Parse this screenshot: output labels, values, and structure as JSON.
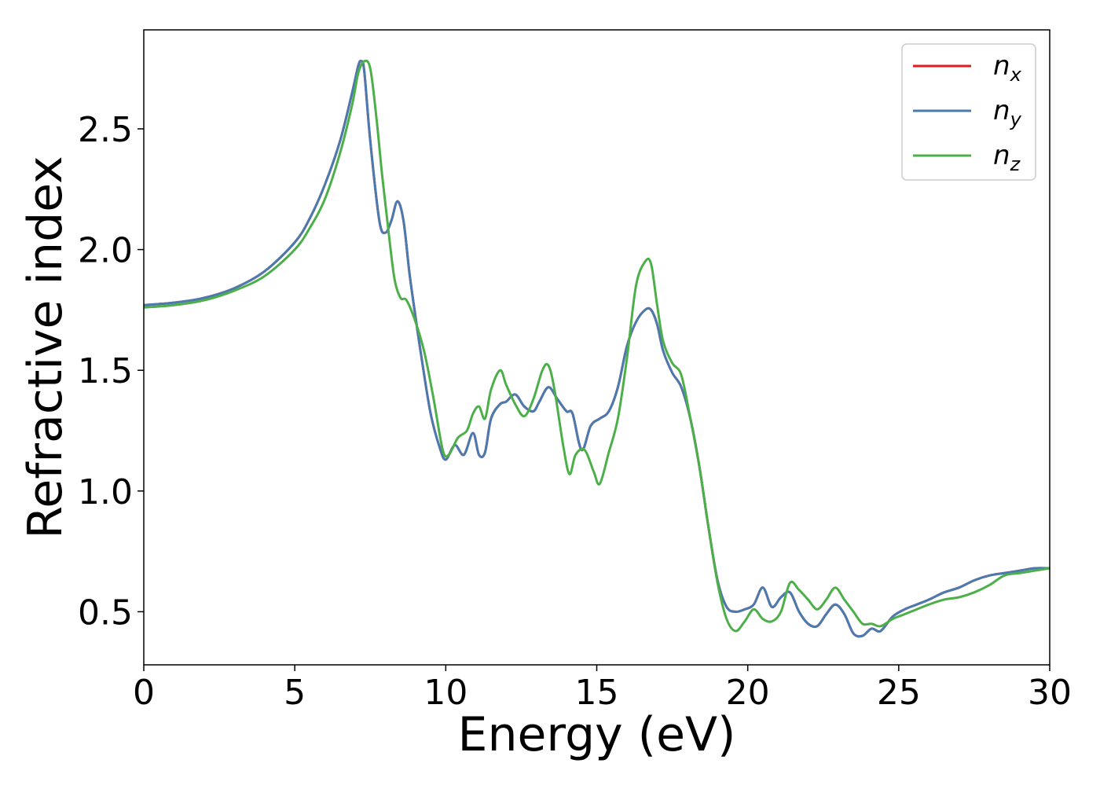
{
  "chart_data": {
    "type": "line",
    "title": "",
    "xlabel": "Energy (eV)",
    "ylabel": "Refractive index",
    "xlim": [
      0,
      30
    ],
    "ylim": [
      0.28,
      2.91
    ],
    "xticks": [
      0,
      5,
      10,
      15,
      20,
      25,
      30
    ],
    "xtick_labels": [
      "0",
      "5",
      "10",
      "15",
      "20",
      "25",
      "30"
    ],
    "yticks": [
      0.5,
      1.0,
      1.5,
      2.0,
      2.5
    ],
    "ytick_labels": [
      "0.5",
      "1.0",
      "1.5",
      "2.0",
      "2.5"
    ],
    "grid": false,
    "legend_position": "top-right",
    "series": [
      {
        "name": "n_x",
        "legend_base": "n",
        "legend_sub": "x",
        "color": "#e41a1c",
        "x": [
          0,
          1,
          2,
          3,
          4,
          5,
          5.5,
          6,
          6.5,
          6.9,
          7.1,
          7.2,
          7.3,
          7.5,
          7.8,
          8.0,
          8.2,
          8.4,
          8.6,
          8.8,
          9.0,
          9.2,
          9.5,
          9.8,
          10.0,
          10.3,
          10.6,
          10.9,
          11.1,
          11.3,
          11.5,
          11.8,
          12.0,
          12.3,
          12.6,
          12.9,
          13.1,
          13.4,
          13.7,
          14.0,
          14.2,
          14.5,
          14.8,
          15.1,
          15.4,
          15.7,
          16.0,
          16.3,
          16.6,
          16.8,
          17.0,
          17.2,
          17.5,
          17.8,
          18.1,
          18.4,
          18.7,
          19.0,
          19.3,
          19.6,
          19.9,
          20.2,
          20.5,
          20.8,
          21.1,
          21.4,
          21.7,
          22.0,
          22.3,
          22.6,
          22.9,
          23.2,
          23.5,
          23.8,
          24.1,
          24.4,
          24.8,
          25.2,
          25.6,
          26.0,
          26.5,
          27.0,
          27.5,
          28.0,
          28.5,
          29.0,
          29.5,
          30.0
        ],
        "y": [
          1.77,
          1.78,
          1.8,
          1.84,
          1.91,
          2.03,
          2.13,
          2.27,
          2.45,
          2.65,
          2.76,
          2.78,
          2.74,
          2.45,
          2.12,
          2.07,
          2.12,
          2.2,
          2.12,
          1.9,
          1.72,
          1.55,
          1.32,
          1.18,
          1.13,
          1.19,
          1.15,
          1.24,
          1.15,
          1.16,
          1.3,
          1.36,
          1.37,
          1.4,
          1.35,
          1.33,
          1.37,
          1.43,
          1.38,
          1.33,
          1.32,
          1.17,
          1.27,
          1.3,
          1.33,
          1.43,
          1.6,
          1.7,
          1.75,
          1.75,
          1.69,
          1.58,
          1.49,
          1.43,
          1.3,
          1.1,
          0.85,
          0.63,
          0.52,
          0.5,
          0.51,
          0.53,
          0.6,
          0.52,
          0.56,
          0.58,
          0.5,
          0.45,
          0.44,
          0.49,
          0.53,
          0.49,
          0.41,
          0.4,
          0.43,
          0.42,
          0.48,
          0.51,
          0.53,
          0.55,
          0.58,
          0.6,
          0.63,
          0.65,
          0.66,
          0.67,
          0.68,
          0.68
        ]
      },
      {
        "name": "n_y",
        "legend_base": "n",
        "legend_sub": "y",
        "color": "#4a7bb0",
        "x": [
          0,
          1,
          2,
          3,
          4,
          5,
          5.5,
          6,
          6.5,
          6.9,
          7.1,
          7.2,
          7.3,
          7.5,
          7.8,
          8.0,
          8.2,
          8.4,
          8.6,
          8.8,
          9.0,
          9.2,
          9.5,
          9.8,
          10.0,
          10.3,
          10.6,
          10.9,
          11.1,
          11.3,
          11.5,
          11.8,
          12.0,
          12.3,
          12.6,
          12.9,
          13.1,
          13.4,
          13.7,
          14.0,
          14.2,
          14.5,
          14.8,
          15.1,
          15.4,
          15.7,
          16.0,
          16.3,
          16.6,
          16.8,
          17.0,
          17.2,
          17.5,
          17.8,
          18.1,
          18.4,
          18.7,
          19.0,
          19.3,
          19.6,
          19.9,
          20.2,
          20.5,
          20.8,
          21.1,
          21.4,
          21.7,
          22.0,
          22.3,
          22.6,
          22.9,
          23.2,
          23.5,
          23.8,
          24.1,
          24.4,
          24.8,
          25.2,
          25.6,
          26.0,
          26.5,
          27.0,
          27.5,
          28.0,
          28.5,
          29.0,
          29.5,
          30.0
        ],
        "y": [
          1.77,
          1.78,
          1.8,
          1.84,
          1.91,
          2.03,
          2.13,
          2.27,
          2.45,
          2.65,
          2.76,
          2.78,
          2.74,
          2.45,
          2.12,
          2.07,
          2.12,
          2.2,
          2.12,
          1.9,
          1.72,
          1.55,
          1.32,
          1.18,
          1.13,
          1.19,
          1.15,
          1.24,
          1.15,
          1.16,
          1.3,
          1.36,
          1.37,
          1.4,
          1.35,
          1.33,
          1.37,
          1.43,
          1.38,
          1.33,
          1.32,
          1.17,
          1.27,
          1.3,
          1.33,
          1.43,
          1.6,
          1.7,
          1.75,
          1.75,
          1.69,
          1.58,
          1.49,
          1.43,
          1.3,
          1.1,
          0.85,
          0.63,
          0.52,
          0.5,
          0.51,
          0.53,
          0.6,
          0.52,
          0.56,
          0.58,
          0.5,
          0.45,
          0.44,
          0.49,
          0.53,
          0.49,
          0.41,
          0.4,
          0.43,
          0.42,
          0.48,
          0.51,
          0.53,
          0.55,
          0.58,
          0.6,
          0.63,
          0.65,
          0.66,
          0.67,
          0.68,
          0.68
        ]
      },
      {
        "name": "n_z",
        "legend_base": "n",
        "legend_sub": "z",
        "color": "#4daf4a",
        "x": [
          0,
          1,
          2,
          3,
          4,
          5,
          5.5,
          6,
          6.5,
          6.9,
          7.1,
          7.3,
          7.5,
          7.7,
          7.9,
          8.1,
          8.3,
          8.5,
          8.7,
          9.0,
          9.3,
          9.6,
          9.9,
          10.1,
          10.4,
          10.7,
          10.9,
          11.1,
          11.3,
          11.5,
          11.8,
          12.0,
          12.3,
          12.6,
          12.9,
          13.2,
          13.4,
          13.6,
          13.9,
          14.1,
          14.3,
          14.6,
          14.9,
          15.1,
          15.4,
          15.7,
          16.0,
          16.3,
          16.6,
          16.8,
          17.0,
          17.2,
          17.5,
          17.8,
          18.1,
          18.4,
          18.7,
          19.0,
          19.3,
          19.6,
          19.9,
          20.2,
          20.5,
          20.8,
          21.1,
          21.4,
          21.7,
          22.0,
          22.3,
          22.6,
          22.9,
          23.2,
          23.5,
          23.8,
          24.1,
          24.4,
          24.8,
          25.2,
          25.6,
          26.0,
          26.5,
          27.0,
          27.5,
          28.0,
          28.5,
          29.0,
          29.5,
          30.0
        ],
        "y": [
          1.76,
          1.77,
          1.79,
          1.83,
          1.89,
          2.0,
          2.09,
          2.21,
          2.4,
          2.6,
          2.73,
          2.78,
          2.75,
          2.55,
          2.3,
          2.08,
          1.88,
          1.8,
          1.79,
          1.7,
          1.57,
          1.38,
          1.17,
          1.15,
          1.22,
          1.25,
          1.32,
          1.35,
          1.3,
          1.42,
          1.5,
          1.44,
          1.36,
          1.31,
          1.38,
          1.5,
          1.52,
          1.42,
          1.18,
          1.07,
          1.15,
          1.17,
          1.08,
          1.03,
          1.16,
          1.3,
          1.55,
          1.85,
          1.95,
          1.94,
          1.77,
          1.62,
          1.53,
          1.48,
          1.3,
          1.1,
          0.85,
          0.62,
          0.47,
          0.42,
          0.46,
          0.51,
          0.47,
          0.46,
          0.5,
          0.62,
          0.59,
          0.55,
          0.51,
          0.55,
          0.6,
          0.55,
          0.5,
          0.45,
          0.45,
          0.44,
          0.47,
          0.49,
          0.51,
          0.53,
          0.55,
          0.56,
          0.58,
          0.61,
          0.65,
          0.66,
          0.67,
          0.68
        ]
      }
    ]
  }
}
